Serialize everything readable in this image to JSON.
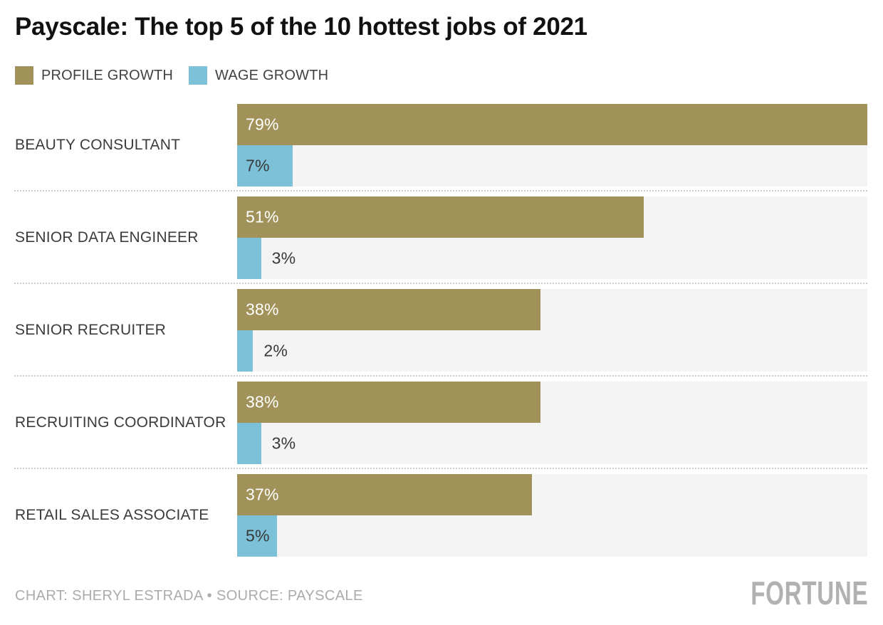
{
  "title": "Payscale: The top 5 of the 10 hottest jobs of 2021",
  "legend": [
    {
      "label": "PROFILE GROWTH",
      "color": "#a09258"
    },
    {
      "label": "WAGE GROWTH",
      "color": "#7cc1d8"
    }
  ],
  "chart_data": {
    "type": "bar",
    "orientation": "horizontal",
    "title": "Payscale: The top 5 of the 10 hottest jobs of 2021",
    "categories": [
      "BEAUTY CONSULTANT",
      "SENIOR DATA ENGINEER",
      "SENIOR RECRUITER",
      "RECRUITING COORDINATOR",
      "RETAIL SALES ASSOCIATE"
    ],
    "series": [
      {
        "name": "PROFILE GROWTH",
        "color": "#a09258",
        "values": [
          79,
          51,
          38,
          38,
          37
        ]
      },
      {
        "name": "WAGE GROWTH",
        "color": "#7cc1d8",
        "values": [
          7,
          3,
          2,
          3,
          5
        ]
      }
    ],
    "value_suffix": "%",
    "data_labels": [
      "79%",
      "7%",
      "51%",
      "3%",
      "38%",
      "2%",
      "38%",
      "3%",
      "37%",
      "5%"
    ],
    "xmax": 79,
    "track_color": "#f4f4f4",
    "grid": false,
    "legend_position": "top-left"
  },
  "footer": {
    "credit": "CHART: SHERYL ESTRADA • SOURCE: PAYSCALE",
    "brand": "FORTUNE"
  }
}
